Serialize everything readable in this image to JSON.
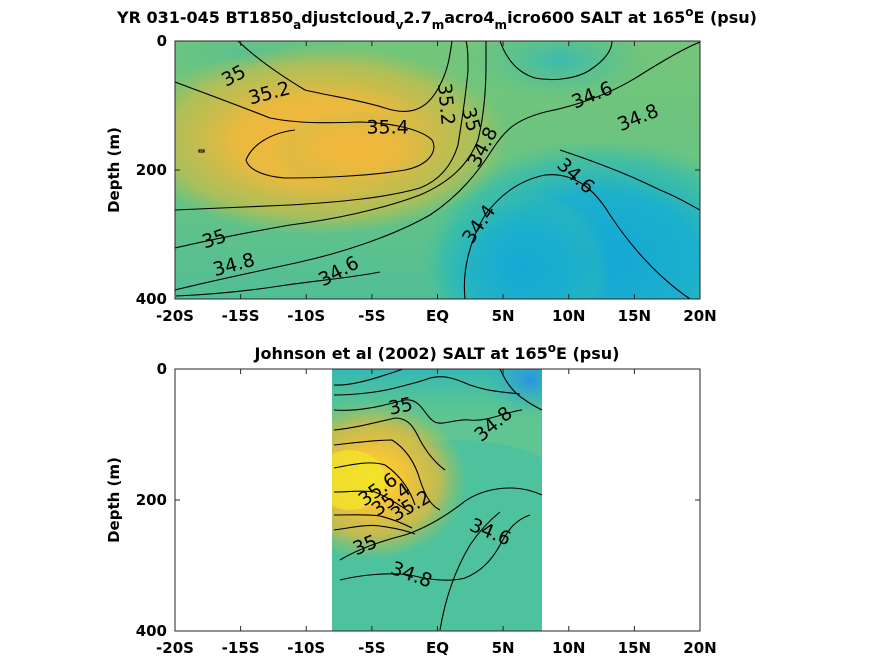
{
  "chart_data": [
    {
      "type": "heatmap",
      "title_parts": [
        {
          "text": "YR 031-045 BT1850",
          "shift": "none"
        },
        {
          "text": "a",
          "shift": "sub"
        },
        {
          "text": "djustcloud",
          "shift": "none"
        },
        {
          "text": "v",
          "shift": "sub"
        },
        {
          "text": "2.7",
          "shift": "none"
        },
        {
          "text": "m",
          "shift": "sub"
        },
        {
          "text": "acro4",
          "shift": "none"
        },
        {
          "text": "m",
          "shift": "sub"
        },
        {
          "text": "icro600 SALT at 165",
          "shift": "none"
        },
        {
          "text": "o",
          "shift": "super"
        },
        {
          "text": "E (psu)",
          "shift": "none"
        }
      ],
      "ylabel": "Depth (m)",
      "x_ticks": [
        "-20S",
        "-15S",
        "-10S",
        "-5S",
        "EQ",
        "5N",
        "10N",
        "15N",
        "20N"
      ],
      "y_ticks": [
        "0",
        "200",
        "400"
      ],
      "xlim": [
        -20,
        20
      ],
      "ylim": [
        0,
        400
      ],
      "colormap": "parula",
      "contour_labels": [
        {
          "text": "35",
          "x": -15.5,
          "y": 55,
          "angle": -28
        },
        {
          "text": "35.2",
          "x": -12.8,
          "y": 82,
          "angle": -15
        },
        {
          "text": "35.4",
          "x": -3.8,
          "y": 135,
          "angle": 0
        },
        {
          "text": "35.2",
          "x": 0.6,
          "y": 98,
          "angle": 85
        },
        {
          "text": "35",
          "x": 2.5,
          "y": 122,
          "angle": 75
        },
        {
          "text": "34.8",
          "x": 3.5,
          "y": 165,
          "angle": -62
        },
        {
          "text": "34.6",
          "x": 11.8,
          "y": 85,
          "angle": -22
        },
        {
          "text": "34.8",
          "x": 15.3,
          "y": 120,
          "angle": -22
        },
        {
          "text": "34.6",
          "x": 10.5,
          "y": 210,
          "angle": 42
        },
        {
          "text": "34.4",
          "x": 3.2,
          "y": 285,
          "angle": -55
        },
        {
          "text": "35",
          "x": -17,
          "y": 308,
          "angle": -18
        },
        {
          "text": "34.8",
          "x": -15.5,
          "y": 348,
          "angle": -15
        },
        {
          "text": "34.6",
          "x": -7.5,
          "y": 358,
          "angle": -28
        }
      ]
    },
    {
      "type": "heatmap",
      "title_parts": [
        {
          "text": "Johnson et al (2002) SALT at 165",
          "shift": "none"
        },
        {
          "text": "o",
          "shift": "super"
        },
        {
          "text": "E (psu)",
          "shift": "none"
        }
      ],
      "ylabel": "Depth (m)",
      "x_ticks": [
        "-20S",
        "-15S",
        "-10S",
        "-5S",
        "EQ",
        "5N",
        "10N",
        "15N",
        "20N"
      ],
      "y_ticks": [
        "0",
        "200",
        "400"
      ],
      "xlim": [
        -20,
        20
      ],
      "ylim": [
        0,
        400
      ],
      "data_extent_x": [
        -8,
        8
      ],
      "colormap": "parula",
      "contour_labels": [
        {
          "text": "35",
          "x": -2.8,
          "y": 58,
          "angle": -12
        },
        {
          "text": "34.8",
          "x": 4.3,
          "y": 85,
          "angle": -40
        },
        {
          "text": "35.6",
          "x": -4.5,
          "y": 185,
          "angle": -35
        },
        {
          "text": "35.4",
          "x": -3.5,
          "y": 200,
          "angle": -35
        },
        {
          "text": "35.2",
          "x": -2.0,
          "y": 210,
          "angle": -30
        },
        {
          "text": "34.6",
          "x": 4.0,
          "y": 250,
          "angle": 22
        },
        {
          "text": "35",
          "x": -5.5,
          "y": 270,
          "angle": -22
        },
        {
          "text": "34.8",
          "x": -2.0,
          "y": 315,
          "angle": 20
        }
      ]
    }
  ]
}
